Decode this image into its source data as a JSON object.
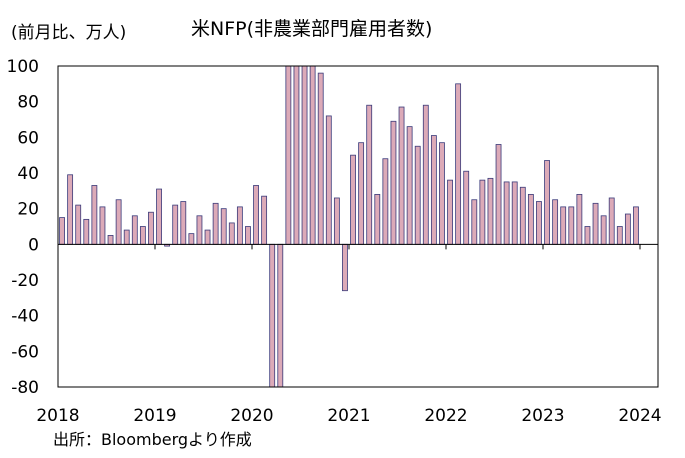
{
  "chart_data": {
    "type": "bar",
    "title": "米NFP(非農業部門雇用者数)",
    "ylabel": "(前月比、万人)",
    "source": "出所：Bloombergより作成",
    "ylim": [
      -80,
      100
    ],
    "yticks": [
      "100",
      "80",
      "60",
      "40",
      "20",
      "0",
      "-20",
      "-40",
      "-60",
      "-80"
    ],
    "xtick_labels": [
      "2018",
      "2019",
      "2020",
      "2021",
      "2022",
      "2023",
      "2024"
    ],
    "x_start": "2018-01",
    "grid": false,
    "bar_fill": "#dcaab8",
    "bar_stroke": "#3a3a7a",
    "series": [
      {
        "values": [
          15,
          39,
          22,
          14,
          33,
          21,
          5,
          25,
          8,
          16,
          10,
          18,
          31,
          -1,
          22,
          24,
          6,
          16,
          8,
          23,
          20,
          12,
          21,
          10,
          33,
          27,
          -80,
          -80,
          100,
          100,
          100,
          100,
          96,
          72,
          26,
          -26,
          50,
          57,
          78,
          28,
          48,
          69,
          77,
          66,
          55,
          78,
          61,
          57,
          36,
          90,
          41,
          25,
          36,
          37,
          56,
          35,
          35,
          32,
          28,
          24,
          47,
          25,
          21,
          21,
          28,
          10,
          23,
          16,
          26,
          10,
          17,
          21
        ]
      }
    ]
  }
}
